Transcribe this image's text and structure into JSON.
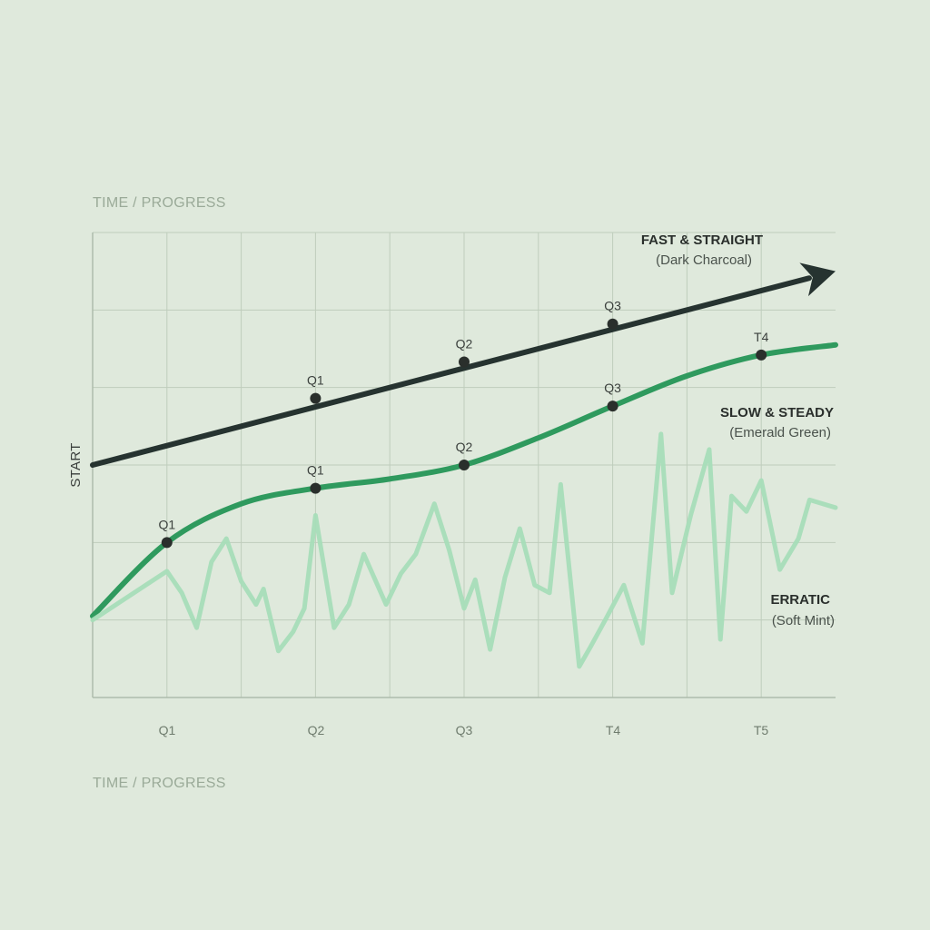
{
  "chart_data": {
    "type": "line",
    "title": "",
    "xlabel_top": "TIME / PROGRESS",
    "xlabel": "TIME / PROGRESS",
    "ylabel": "START",
    "categories": [
      "Q1",
      "Q2",
      "Q3",
      "T4",
      "T5"
    ],
    "x_range": [
      0,
      10
    ],
    "y_range": [
      0,
      6
    ],
    "grid": true,
    "colors": {
      "background": "#dfe9dc",
      "fast": "#263330",
      "slow": "#2f9a5e",
      "erratic": "#a7ddb8",
      "grid": "#bfcdbc"
    },
    "series": [
      {
        "id": "fast",
        "name": "FAST & STRAIGHT",
        "subtitle": "(Dark Charcoal)",
        "points": [
          [
            0,
            3.0
          ],
          [
            10,
            5.5
          ]
        ],
        "markers": [
          {
            "x": 3,
            "y": 3.86,
            "label": "Q1"
          },
          {
            "x": 5,
            "y": 4.33,
            "label": "Q2"
          },
          {
            "x": 7,
            "y": 4.82,
            "label": "Q3"
          }
        ]
      },
      {
        "id": "slow",
        "name": "SLOW & STEADY",
        "subtitle": "(Emerald Green)",
        "points": [
          [
            0,
            1.05
          ],
          [
            1,
            2.0
          ],
          [
            2,
            2.5
          ],
          [
            3,
            2.7
          ],
          [
            4,
            2.82
          ],
          [
            5,
            3.0
          ],
          [
            6,
            3.35
          ],
          [
            7,
            3.76
          ],
          [
            8,
            4.15
          ],
          [
            9,
            4.42
          ],
          [
            10,
            4.55
          ]
        ],
        "markers": [
          {
            "x": 1,
            "y": 2.0,
            "label": "Q1"
          },
          {
            "x": 3,
            "y": 2.7,
            "label": "Q1"
          },
          {
            "x": 5,
            "y": 3.0,
            "label": "Q2"
          },
          {
            "x": 7,
            "y": 3.76,
            "label": "Q3"
          },
          {
            "x": 9,
            "y": 4.42,
            "label": "T4"
          }
        ]
      },
      {
        "id": "erratic",
        "name": "ERRATIC",
        "subtitle": "(Soft Mint)",
        "points": [
          [
            0,
            1.0
          ],
          [
            1,
            1.63
          ],
          [
            1.2,
            1.35
          ],
          [
            1.4,
            0.9
          ],
          [
            1.6,
            1.75
          ],
          [
            1.8,
            2.05
          ],
          [
            2.0,
            1.5
          ],
          [
            2.2,
            1.2
          ],
          [
            2.3,
            1.4
          ],
          [
            2.5,
            0.6
          ],
          [
            2.7,
            0.85
          ],
          [
            2.85,
            1.15
          ],
          [
            3.0,
            2.35
          ],
          [
            3.25,
            0.9
          ],
          [
            3.45,
            1.2
          ],
          [
            3.65,
            1.85
          ],
          [
            3.95,
            1.2
          ],
          [
            4.15,
            1.6
          ],
          [
            4.35,
            1.85
          ],
          [
            4.6,
            2.5
          ],
          [
            4.8,
            1.9
          ],
          [
            5.0,
            1.15
          ],
          [
            5.15,
            1.52
          ],
          [
            5.35,
            0.62
          ],
          [
            5.55,
            1.55
          ],
          [
            5.75,
            2.18
          ],
          [
            5.95,
            1.45
          ],
          [
            6.15,
            1.35
          ],
          [
            6.3,
            2.75
          ],
          [
            6.55,
            0.4
          ],
          [
            6.7,
            0.65
          ],
          [
            6.9,
            1.0
          ],
          [
            7.15,
            1.45
          ],
          [
            7.4,
            0.7
          ],
          [
            7.65,
            3.4
          ],
          [
            7.8,
            1.35
          ],
          [
            8.05,
            2.35
          ],
          [
            8.3,
            3.2
          ],
          [
            8.45,
            0.75
          ],
          [
            8.6,
            2.6
          ],
          [
            8.8,
            2.4
          ],
          [
            9.0,
            2.8
          ],
          [
            9.25,
            1.65
          ],
          [
            9.5,
            2.05
          ],
          [
            9.65,
            2.55
          ],
          [
            10.0,
            2.45
          ]
        ],
        "markers": []
      }
    ]
  }
}
